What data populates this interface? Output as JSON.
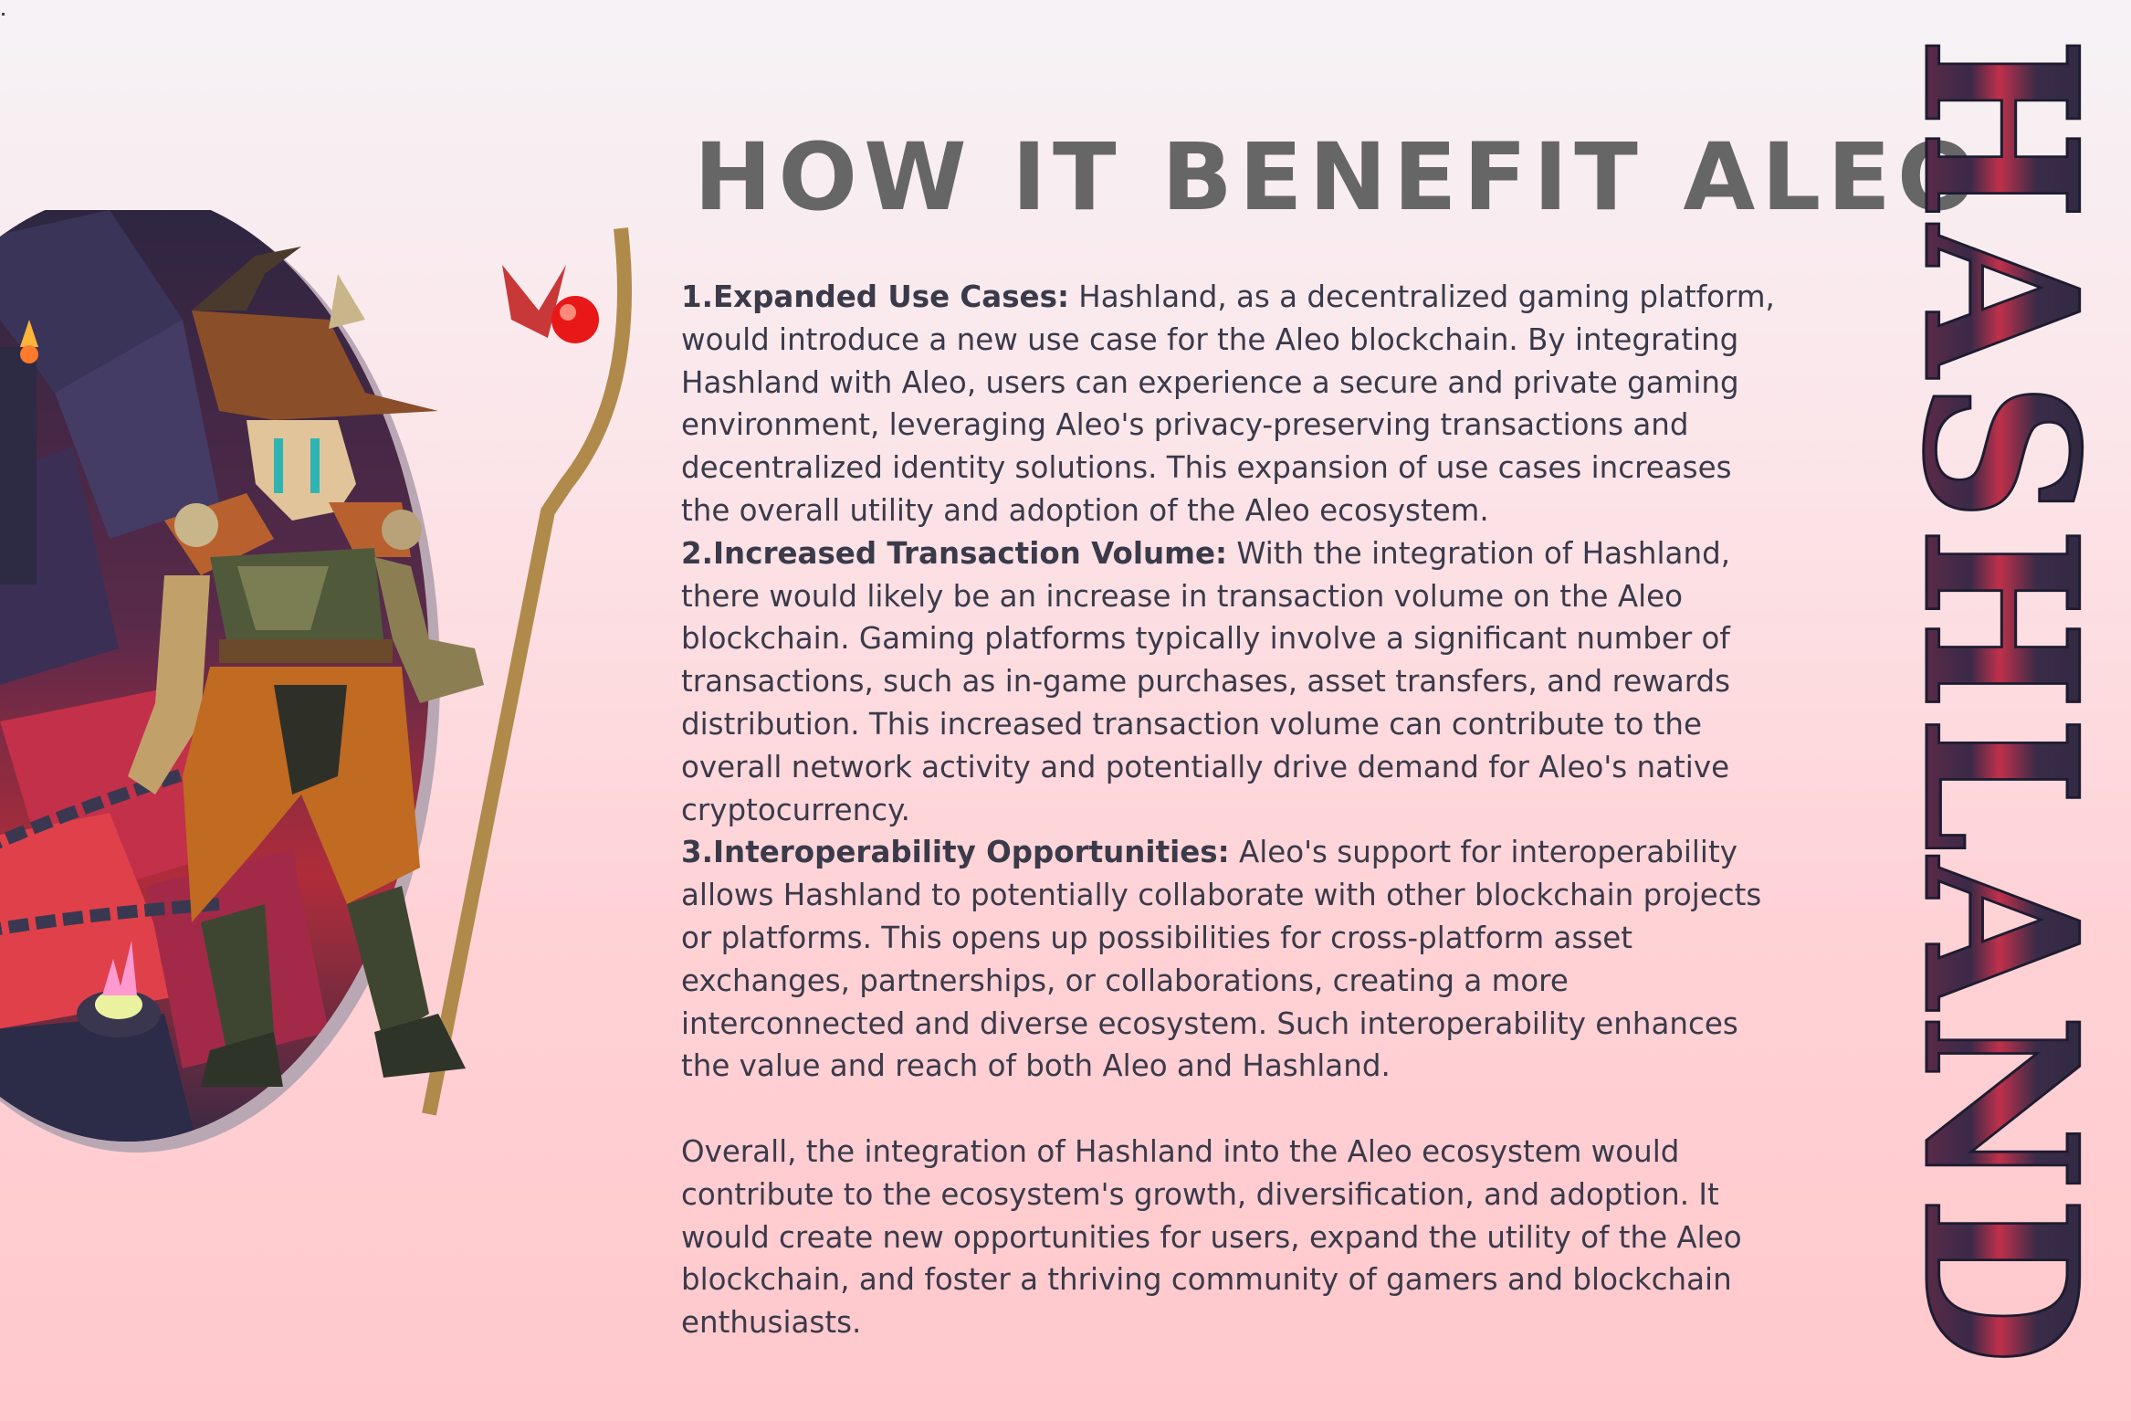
{
  "title": "HOW IT BENEFIT ALEO",
  "logo_text": "HASHLAND",
  "sections": [
    {
      "label": "1.Expanded Use Cases:",
      "text": " Hashland, as a decentralized gaming platform, would introduce a new use case for the Aleo blockchain. By integrating Hashland with Aleo, users can experience a secure and private gaming environment, leveraging Aleo's privacy-preserving transactions and decentralized identity solutions. This expansion of use cases increases the overall utility and adoption of the Aleo ecosystem."
    },
    {
      "label": "2.Increased Transaction Volume:",
      "text": " With the integration of Hashland, there would likely be an increase in transaction volume on the Aleo blockchain. Gaming platforms typically involve a significant number of transactions, such as in-game purchases, asset transfers, and rewards distribution. This increased transaction volume can contribute to the overall network activity and potentially drive demand for Aleo's native cryptocurrency."
    },
    {
      "label": "3.Interoperability Opportunities:",
      "text": " Aleo's support for interoperability allows Hashland to potentially collaborate with other blockchain projects or platforms. This opens up possibilities for cross-platform asset exchanges, partnerships, or collaborations, creating a more interconnected and diverse ecosystem. Such interoperability enhances the value and reach of both Aleo and Hashland."
    }
  ],
  "conclusion": "Overall, the integration of Hashland into the Aleo ecosystem would contribute to the ecosystem's growth, diversification, and adoption. It would create new opportunities for users, expand the utility of the Aleo blockchain, and foster a thriving community of gamers and blockchain enthusiasts."
}
